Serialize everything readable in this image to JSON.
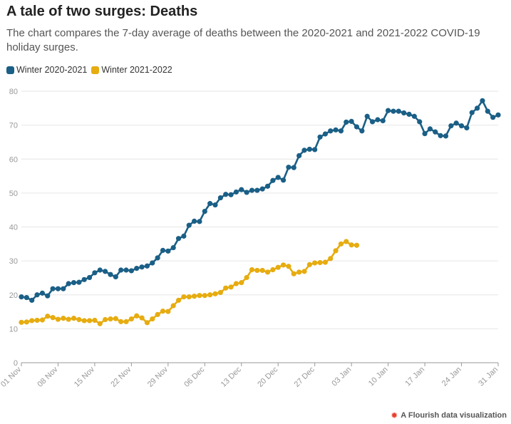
{
  "colors": {
    "winter_2020": "#1a5f86",
    "winter_2021": "#e6ac10",
    "grid": "#e6e6e6",
    "axis": "#999999",
    "tick_text": "#999999"
  },
  "credit": {
    "icon": "flourish-logo-icon",
    "text": "A Flourish data visualization"
  },
  "chart_data": {
    "type": "line",
    "title": "A tale of two surges: Deaths",
    "subtitle": "The chart compares the 7-day average of deaths between the 2020-2021 and 2021-2022 COVID-19 holiday surges.",
    "xlabel": "",
    "ylabel": "",
    "ylim": [
      0,
      80
    ],
    "yticks": [
      0,
      10,
      20,
      30,
      40,
      50,
      60,
      70,
      80
    ],
    "xlim": [
      0,
      91
    ],
    "xticks": [
      {
        "day": 0,
        "label": "01 Nov"
      },
      {
        "day": 7,
        "label": "08 Nov"
      },
      {
        "day": 14,
        "label": "15 Nov"
      },
      {
        "day": 21,
        "label": "22 Nov"
      },
      {
        "day": 28,
        "label": "29 Nov"
      },
      {
        "day": 35,
        "label": "06 Dec"
      },
      {
        "day": 42,
        "label": "13 Dec"
      },
      {
        "day": 49,
        "label": "20 Dec"
      },
      {
        "day": 56,
        "label": "27 Dec"
      },
      {
        "day": 63,
        "label": "03 Jan"
      },
      {
        "day": 70,
        "label": "10 Jan"
      },
      {
        "day": 77,
        "label": "17 Jan"
      },
      {
        "day": 84,
        "label": "24 Jan"
      },
      {
        "day": 91,
        "label": "31 Jan"
      }
    ],
    "grid": true,
    "legend_position": "top-left",
    "series": [
      {
        "name": "Winter 2020-2021",
        "color_key": "winter_2020",
        "values": [
          19.4,
          19.2,
          18.4,
          20.0,
          20.5,
          19.7,
          21.8,
          21.8,
          21.8,
          23.3,
          23.6,
          23.7,
          24.5,
          25.1,
          26.5,
          27.3,
          26.9,
          26.0,
          25.3,
          27.3,
          27.3,
          27.1,
          27.8,
          28.2,
          28.5,
          29.4,
          30.9,
          33.1,
          32.9,
          33.9,
          36.6,
          37.3,
          40.5,
          41.7,
          41.6,
          44.6,
          46.9,
          46.5,
          48.6,
          49.6,
          49.5,
          50.3,
          51.0,
          50.2,
          50.8,
          50.8,
          51.2,
          52.0,
          53.7,
          54.6,
          53.8,
          57.6,
          57.5,
          61.0,
          62.6,
          62.9,
          62.8,
          66.5,
          67.4,
          68.3,
          68.6,
          68.3,
          70.9,
          71.1,
          69.5,
          68.3,
          72.6,
          71.0,
          71.6,
          71.3,
          74.3,
          74.1,
          74.1,
          73.6,
          73.2,
          72.6,
          71.0,
          67.5,
          68.9,
          68.0,
          66.9,
          66.8,
          69.8,
          70.6,
          69.8,
          69.2,
          73.7,
          75.0,
          77.2,
          74.1,
          72.3,
          73.0
        ]
      },
      {
        "name": "Winter 2021-2022",
        "color_key": "winter_2021",
        "values": [
          11.9,
          12.0,
          12.4,
          12.5,
          12.6,
          13.7,
          13.3,
          12.8,
          13.1,
          12.8,
          13.1,
          12.7,
          12.4,
          12.4,
          12.5,
          11.5,
          12.7,
          12.9,
          13.0,
          12.1,
          12.1,
          12.9,
          13.8,
          13.2,
          11.8,
          12.9,
          14.2,
          15.2,
          15.1,
          16.8,
          18.4,
          19.4,
          19.4,
          19.6,
          19.8,
          19.8,
          20.0,
          20.3,
          20.7,
          22.0,
          22.3,
          23.3,
          23.6,
          25.1,
          27.4,
          27.2,
          27.2,
          26.7,
          27.4,
          28.1,
          28.8,
          28.4,
          26.2,
          26.7,
          26.9,
          28.9,
          29.4,
          29.5,
          29.6,
          30.7,
          33.0,
          35.0,
          35.7,
          34.7,
          34.6
        ]
      }
    ]
  }
}
